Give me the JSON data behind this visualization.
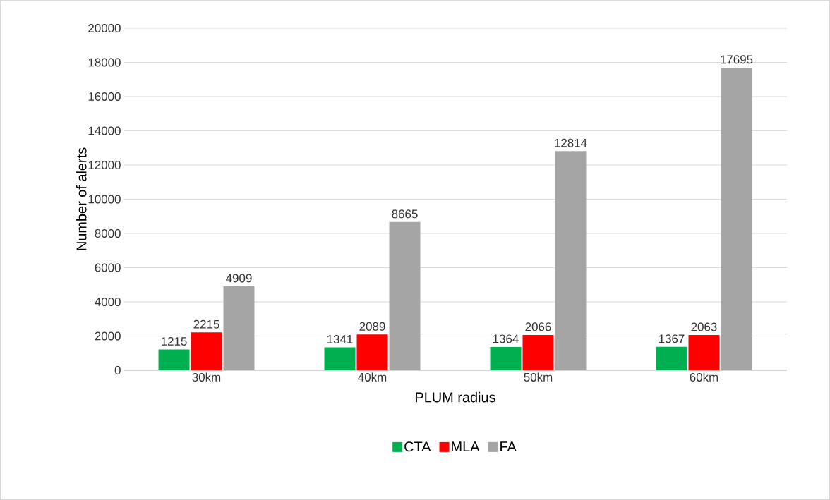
{
  "chart_data": {
    "type": "bar",
    "xlabel": "PLUM radius",
    "ylabel": "Number of alerts",
    "categories": [
      "30km",
      "40km",
      "50km",
      "60km"
    ],
    "series": [
      {
        "name": "CTA",
        "color": "#00b050",
        "values": [
          1215,
          1341,
          1364,
          1367
        ]
      },
      {
        "name": "MLA",
        "color": "#ff0000",
        "values": [
          2215,
          2089,
          2066,
          2063
        ]
      },
      {
        "name": "FA",
        "color": "#a5a5a5",
        "values": [
          4909,
          8665,
          12814,
          17695
        ]
      }
    ],
    "ylim": [
      0,
      20000
    ],
    "yticks": [
      0,
      2000,
      4000,
      6000,
      8000,
      10000,
      12000,
      14000,
      16000,
      18000,
      20000
    ],
    "grid": "y",
    "legend": "bottom",
    "data_labels": true
  }
}
